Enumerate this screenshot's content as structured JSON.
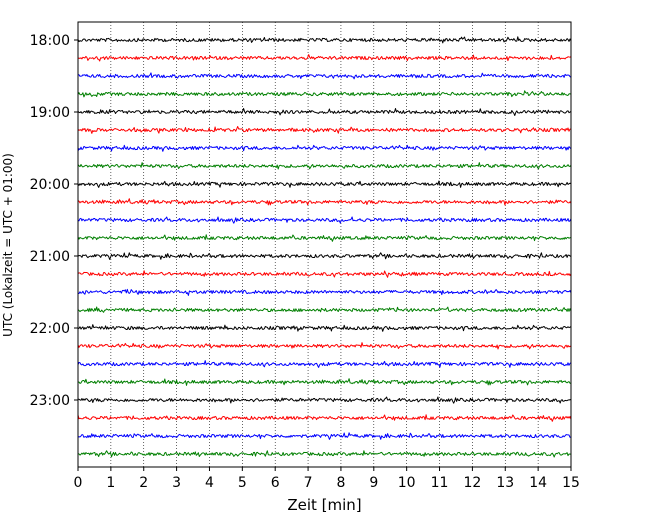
{
  "chart_data": {
    "type": "line",
    "title": "",
    "xlabel": "Zeit  [min]",
    "ylabel": "UTC (Lokalzeit = UTC + 01:00)",
    "xlim": [
      0,
      15
    ],
    "x_ticks": [
      "0",
      "1",
      "2",
      "3",
      "4",
      "5",
      "6",
      "7",
      "8",
      "9",
      "10",
      "11",
      "12",
      "13",
      "14",
      "15"
    ],
    "y_tick_labels": [
      "18:00",
      "19:00",
      "20:00",
      "21:00",
      "22:00",
      "23:00"
    ],
    "row_minutes": 15,
    "rows": [
      {
        "start": "18:00",
        "color": "#000000"
      },
      {
        "start": "18:15",
        "color": "#ff0000"
      },
      {
        "start": "18:30",
        "color": "#0000ff"
      },
      {
        "start": "18:45",
        "color": "#007f00"
      },
      {
        "start": "19:00",
        "color": "#000000"
      },
      {
        "start": "19:15",
        "color": "#ff0000"
      },
      {
        "start": "19:30",
        "color": "#0000ff"
      },
      {
        "start": "19:45",
        "color": "#007f00"
      },
      {
        "start": "20:00",
        "color": "#000000"
      },
      {
        "start": "20:15",
        "color": "#ff0000"
      },
      {
        "start": "20:30",
        "color": "#0000ff"
      },
      {
        "start": "20:45",
        "color": "#007f00"
      },
      {
        "start": "21:00",
        "color": "#000000"
      },
      {
        "start": "21:15",
        "color": "#ff0000"
      },
      {
        "start": "21:30",
        "color": "#0000ff"
      },
      {
        "start": "21:45",
        "color": "#007f00"
      },
      {
        "start": "22:00",
        "color": "#000000"
      },
      {
        "start": "22:15",
        "color": "#ff0000"
      },
      {
        "start": "22:30",
        "color": "#0000ff"
      },
      {
        "start": "22:45",
        "color": "#007f00"
      },
      {
        "start": "23:00",
        "color": "#000000"
      },
      {
        "start": "23:15",
        "color": "#ff0000"
      },
      {
        "start": "23:30",
        "color": "#0000ff"
      },
      {
        "start": "23:45",
        "color": "#007f00"
      }
    ],
    "grid": true,
    "grid_axis": "x"
  }
}
